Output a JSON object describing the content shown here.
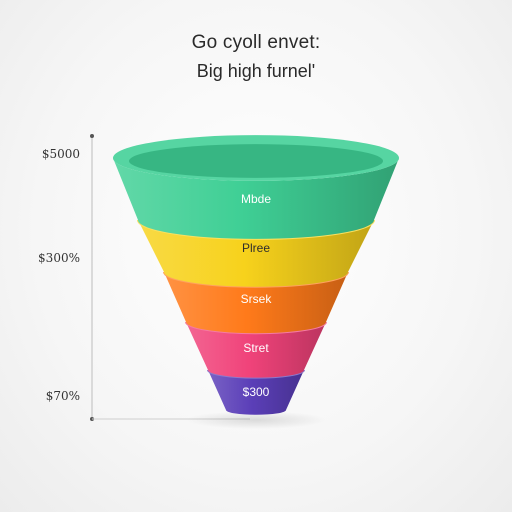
{
  "chart_data": {
    "type": "funnel",
    "title": "Go cyoll envet:",
    "subtitle": "Big high furnel'",
    "y_ticks": [
      "$5000",
      "$300%",
      "$70%"
    ],
    "stages": [
      {
        "label": "Mbde",
        "color": "#3fcf95",
        "dark_text": false
      },
      {
        "label": "Plree",
        "color": "#f7d21c",
        "dark_text": true
      },
      {
        "label": "Srsek",
        "color": "#ff7a1a",
        "dark_text": false
      },
      {
        "label": "Stret",
        "color": "#f0437a",
        "dark_text": false
      },
      {
        "label": "$300",
        "color": "#5b3fb8",
        "dark_text": false
      }
    ]
  }
}
